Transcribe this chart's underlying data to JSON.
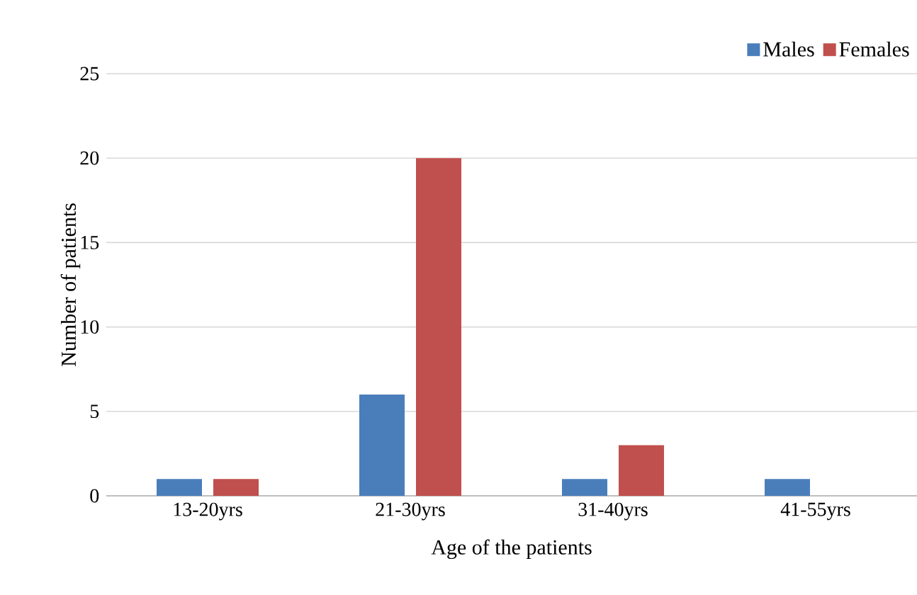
{
  "chart_data": {
    "type": "bar",
    "xlabel": "Age of the patients",
    "ylabel": "Number of patients",
    "categories": [
      "13-20yrs",
      "21-30yrs",
      "31-40yrs",
      "41-55yrs"
    ],
    "series": [
      {
        "name": "Males",
        "color": "#4a7ebb",
        "values": [
          1,
          6,
          1,
          1
        ]
      },
      {
        "name": "Females",
        "color": "#c0504d",
        "values": [
          1,
          20,
          3,
          0
        ]
      }
    ],
    "ylim": [
      0,
      25
    ],
    "yticks": [
      0,
      5,
      10,
      15,
      20,
      25
    ],
    "grid": "y",
    "legend": "top right"
  }
}
